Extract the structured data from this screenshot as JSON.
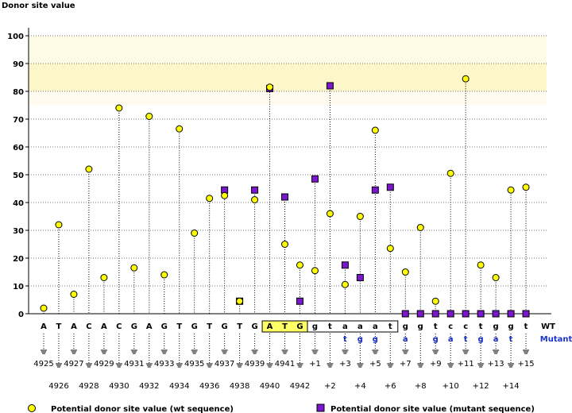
{
  "chart_data": {
    "type": "scatter",
    "title": "Donor site value",
    "ylim": [
      0,
      100
    ],
    "yticks": [
      0,
      10,
      20,
      30,
      40,
      50,
      60,
      70,
      80,
      90,
      100
    ],
    "bands": [
      {
        "from": 80,
        "to": 90,
        "color": "#fbf7c9"
      },
      {
        "from": 90,
        "to": 100,
        "color": "#fdfbe5"
      },
      {
        "from": 75,
        "to": 80,
        "color": "#fffbf0"
      }
    ],
    "wt_label": "WT",
    "mutant_label": "Mutant",
    "columns": [
      {
        "wt": "A",
        "mut": "",
        "pos": "4925",
        "wt_value": 2,
        "mut_value": null
      },
      {
        "wt": "T",
        "mut": "",
        "pos": "4926",
        "wt_value": 32,
        "mut_value": null
      },
      {
        "wt": "A",
        "mut": "",
        "pos": "4927",
        "wt_value": 7,
        "mut_value": null
      },
      {
        "wt": "C",
        "mut": "",
        "pos": "4928",
        "wt_value": 52,
        "mut_value": null
      },
      {
        "wt": "A",
        "mut": "",
        "pos": "4929",
        "wt_value": 13,
        "mut_value": null
      },
      {
        "wt": "C",
        "mut": "",
        "pos": "4930",
        "wt_value": 74,
        "mut_value": null
      },
      {
        "wt": "G",
        "mut": "",
        "pos": "4931",
        "wt_value": 16.5,
        "mut_value": null
      },
      {
        "wt": "A",
        "mut": "",
        "pos": "4932",
        "wt_value": 71,
        "mut_value": null
      },
      {
        "wt": "G",
        "mut": "",
        "pos": "4933",
        "wt_value": 14,
        "mut_value": null
      },
      {
        "wt": "T",
        "mut": "",
        "pos": "4934",
        "wt_value": 66.5,
        "mut_value": null
      },
      {
        "wt": "G",
        "mut": "",
        "pos": "4935",
        "wt_value": 29,
        "mut_value": null
      },
      {
        "wt": "T",
        "mut": "",
        "pos": "4936",
        "wt_value": 41.5,
        "mut_value": null
      },
      {
        "wt": "G",
        "mut": "",
        "pos": "4937",
        "wt_value": 42.5,
        "mut_value": 44.5
      },
      {
        "wt": "T",
        "mut": "",
        "pos": "4938",
        "wt_value": 4.5,
        "mut_value": 4.5
      },
      {
        "wt": "G",
        "mut": "",
        "pos": "4939",
        "wt_value": 41,
        "mut_value": 44.5
      },
      {
        "wt": "A",
        "mut": "",
        "pos": "4940",
        "wt_value": 81.5,
        "mut_value": 81
      },
      {
        "wt": "T",
        "mut": "",
        "pos": "4941",
        "wt_value": 25,
        "mut_value": 42
      },
      {
        "wt": "G",
        "mut": "",
        "pos": "4942",
        "wt_value": 17.5,
        "mut_value": 4.5
      },
      {
        "wt": "g",
        "mut": "",
        "pos": "+1",
        "wt_value": 15.5,
        "mut_value": 48.5
      },
      {
        "wt": "t",
        "mut": "",
        "pos": "+2",
        "wt_value": 36,
        "mut_value": 82
      },
      {
        "wt": "a",
        "mut": "t",
        "pos": "+3",
        "wt_value": 10.5,
        "mut_value": 17.5
      },
      {
        "wt": "a",
        "mut": "g",
        "pos": "+4",
        "wt_value": 35,
        "mut_value": 13
      },
      {
        "wt": "a",
        "mut": "g",
        "pos": "+5",
        "wt_value": 66,
        "mut_value": 44.5
      },
      {
        "wt": "t",
        "mut": "",
        "pos": "+6",
        "wt_value": 23.5,
        "mut_value": 45.5
      },
      {
        "wt": "g",
        "mut": "a",
        "pos": "+7",
        "wt_value": 15,
        "mut_value": 0
      },
      {
        "wt": "g",
        "mut": "",
        "pos": "+8",
        "wt_value": 31,
        "mut_value": 0
      },
      {
        "wt": "t",
        "mut": "g",
        "pos": "+9",
        "wt_value": 4.5,
        "mut_value": 0
      },
      {
        "wt": "c",
        "mut": "a",
        "pos": "+10",
        "wt_value": 50.5,
        "mut_value": 0
      },
      {
        "wt": "c",
        "mut": "t",
        "pos": "+11",
        "wt_value": 84.5,
        "mut_value": 0
      },
      {
        "wt": "t",
        "mut": "g",
        "pos": "+12",
        "wt_value": 17.5,
        "mut_value": 0
      },
      {
        "wt": "g",
        "mut": "a",
        "pos": "+13",
        "wt_value": 13,
        "mut_value": 0
      },
      {
        "wt": "g",
        "mut": "t",
        "pos": "+14",
        "wt_value": 44.5,
        "mut_value": 0
      },
      {
        "wt": "t",
        "mut": "",
        "pos": "+15",
        "wt_value": 45.5,
        "mut_value": 0
      }
    ],
    "highlight_start": 15,
    "highlight_end": 17,
    "box_start": 18,
    "box_end": 23,
    "legend": {
      "wt": "Potential donor site value (wt sequence)",
      "mutant": "Potential donor site value (mutant sequence)"
    },
    "colors": {
      "wt_marker": "#ffff00",
      "mut_marker": "#7a16cc",
      "mutant_text": "#1a33cc",
      "highlight": "#ffff66"
    }
  }
}
